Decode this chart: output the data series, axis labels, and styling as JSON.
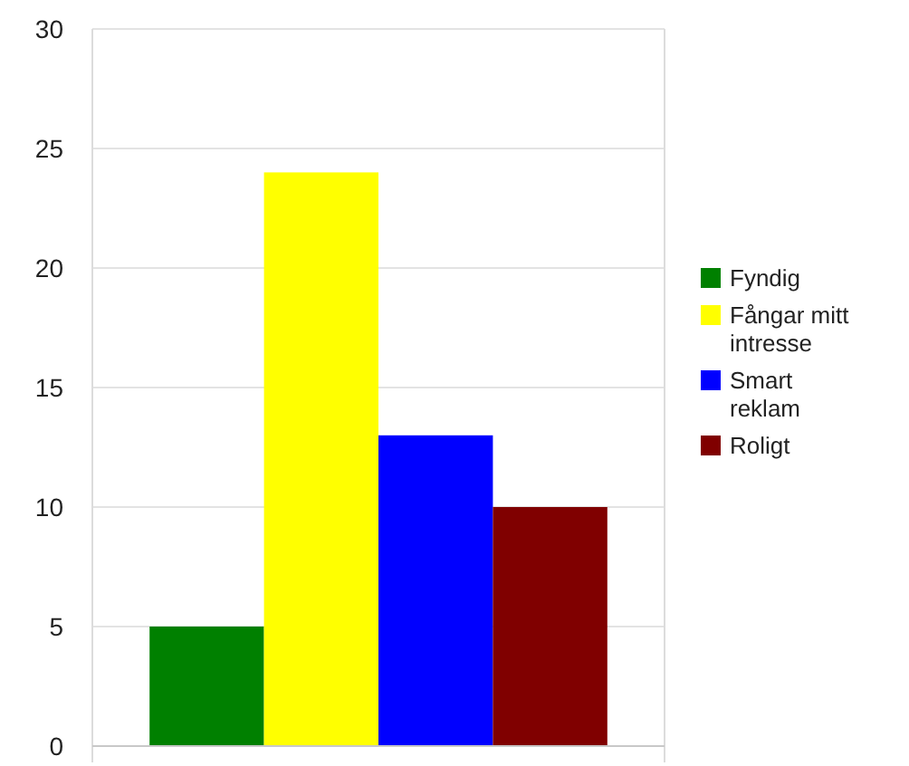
{
  "chart_data": {
    "type": "bar",
    "categories": [
      null
    ],
    "series": [
      {
        "name": "Fyndig",
        "color": "#008000",
        "values": [
          5
        ]
      },
      {
        "name": "Fångar mitt intresse",
        "color": "#ffff00",
        "values": [
          24
        ]
      },
      {
        "name": "Smart reklam",
        "color": "#0000ff",
        "values": [
          13
        ]
      },
      {
        "name": "Roligt",
        "color": "#800000",
        "values": [
          10
        ]
      }
    ],
    "ylim": [
      0,
      30
    ],
    "yticks": [
      0,
      5,
      10,
      15,
      20,
      25,
      30
    ],
    "grid": "y",
    "legend": "right"
  }
}
